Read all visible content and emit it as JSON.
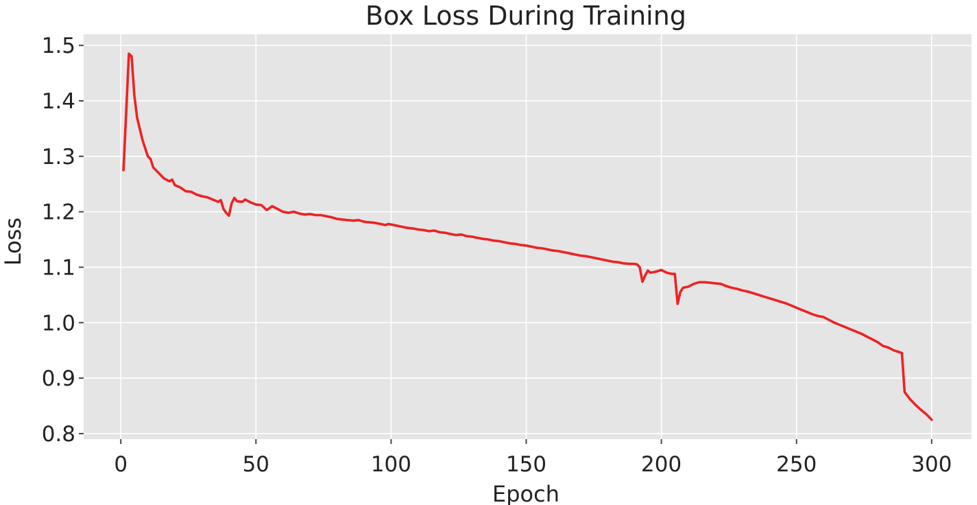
{
  "chart_data": {
    "type": "line",
    "title": "Box Loss During Training",
    "xlabel": "Epoch",
    "ylabel": "Loss",
    "xlim": [
      -13.75,
      314.75
    ],
    "ylim": [
      0.79,
      1.52
    ],
    "xticks": [
      0,
      50,
      100,
      150,
      200,
      250,
      300
    ],
    "xtick_labels": [
      "0",
      "50",
      "100",
      "150",
      "200",
      "250",
      "300"
    ],
    "yticks": [
      0.8,
      0.9,
      1.0,
      1.1,
      1.2,
      1.3,
      1.4,
      1.5
    ],
    "ytick_labels": [
      "0.8",
      "0.9",
      "1.0",
      "1.1",
      "1.2",
      "1.3",
      "1.4",
      "1.5"
    ],
    "grid": true,
    "background": "#e5e5e5",
    "series": [
      {
        "color": "#ee2222",
        "points": [
          [
            1,
            1.275
          ],
          [
            3,
            1.485
          ],
          [
            4,
            1.48
          ],
          [
            5,
            1.41
          ],
          [
            6,
            1.37
          ],
          [
            8,
            1.33
          ],
          [
            10,
            1.3
          ],
          [
            11,
            1.295
          ],
          [
            12,
            1.28
          ],
          [
            14,
            1.27
          ],
          [
            16,
            1.26
          ],
          [
            18,
            1.255
          ],
          [
            19,
            1.258
          ],
          [
            20,
            1.248
          ],
          [
            22,
            1.244
          ],
          [
            24,
            1.237
          ],
          [
            26,
            1.236
          ],
          [
            28,
            1.231
          ],
          [
            30,
            1.228
          ],
          [
            32,
            1.226
          ],
          [
            34,
            1.222
          ],
          [
            36,
            1.218
          ],
          [
            37,
            1.221
          ],
          [
            38,
            1.205
          ],
          [
            39,
            1.198
          ],
          [
            40,
            1.193
          ],
          [
            41,
            1.215
          ],
          [
            42,
            1.225
          ],
          [
            43,
            1.219
          ],
          [
            45,
            1.218
          ],
          [
            46,
            1.222
          ],
          [
            48,
            1.217
          ],
          [
            50,
            1.213
          ],
          [
            52,
            1.212
          ],
          [
            54,
            1.203
          ],
          [
            56,
            1.21
          ],
          [
            58,
            1.205
          ],
          [
            60,
            1.2
          ],
          [
            62,
            1.198
          ],
          [
            64,
            1.2
          ],
          [
            66,
            1.197
          ],
          [
            68,
            1.195
          ],
          [
            70,
            1.196
          ],
          [
            72,
            1.194
          ],
          [
            74,
            1.194
          ],
          [
            76,
            1.192
          ],
          [
            78,
            1.19
          ],
          [
            80,
            1.187
          ],
          [
            82,
            1.186
          ],
          [
            84,
            1.185
          ],
          [
            86,
            1.184
          ],
          [
            88,
            1.185
          ],
          [
            90,
            1.182
          ],
          [
            92,
            1.181
          ],
          [
            94,
            1.18
          ],
          [
            96,
            1.178
          ],
          [
            98,
            1.176
          ],
          [
            99,
            1.178
          ],
          [
            100,
            1.177
          ],
          [
            102,
            1.175
          ],
          [
            104,
            1.173
          ],
          [
            106,
            1.171
          ],
          [
            108,
            1.17
          ],
          [
            110,
            1.168
          ],
          [
            112,
            1.167
          ],
          [
            114,
            1.165
          ],
          [
            116,
            1.166
          ],
          [
            118,
            1.163
          ],
          [
            120,
            1.162
          ],
          [
            122,
            1.16
          ],
          [
            124,
            1.158
          ],
          [
            126,
            1.159
          ],
          [
            128,
            1.156
          ],
          [
            130,
            1.155
          ],
          [
            132,
            1.153
          ],
          [
            134,
            1.151
          ],
          [
            136,
            1.15
          ],
          [
            138,
            1.148
          ],
          [
            140,
            1.147
          ],
          [
            142,
            1.145
          ],
          [
            144,
            1.143
          ],
          [
            146,
            1.142
          ],
          [
            148,
            1.14
          ],
          [
            150,
            1.139
          ],
          [
            152,
            1.137
          ],
          [
            154,
            1.135
          ],
          [
            156,
            1.134
          ],
          [
            158,
            1.132
          ],
          [
            160,
            1.13
          ],
          [
            162,
            1.129
          ],
          [
            164,
            1.127
          ],
          [
            166,
            1.125
          ],
          [
            168,
            1.123
          ],
          [
            170,
            1.121
          ],
          [
            172,
            1.12
          ],
          [
            174,
            1.118
          ],
          [
            176,
            1.116
          ],
          [
            178,
            1.114
          ],
          [
            180,
            1.112
          ],
          [
            182,
            1.11
          ],
          [
            184,
            1.109
          ],
          [
            186,
            1.107
          ],
          [
            188,
            1.106
          ],
          [
            190,
            1.106
          ],
          [
            191,
            1.105
          ],
          [
            192,
            1.1
          ],
          [
            193,
            1.074
          ],
          [
            194,
            1.085
          ],
          [
            195,
            1.094
          ],
          [
            196,
            1.09
          ],
          [
            198,
            1.092
          ],
          [
            200,
            1.095
          ],
          [
            202,
            1.09
          ],
          [
            204,
            1.088
          ],
          [
            205,
            1.088
          ],
          [
            206,
            1.034
          ],
          [
            207,
            1.055
          ],
          [
            208,
            1.063
          ],
          [
            210,
            1.065
          ],
          [
            212,
            1.07
          ],
          [
            214,
            1.073
          ],
          [
            216,
            1.073
          ],
          [
            218,
            1.072
          ],
          [
            220,
            1.071
          ],
          [
            222,
            1.07
          ],
          [
            224,
            1.066
          ],
          [
            226,
            1.063
          ],
          [
            228,
            1.061
          ],
          [
            230,
            1.058
          ],
          [
            232,
            1.056
          ],
          [
            234,
            1.053
          ],
          [
            236,
            1.05
          ],
          [
            238,
            1.047
          ],
          [
            240,
            1.044
          ],
          [
            242,
            1.041
          ],
          [
            244,
            1.038
          ],
          [
            246,
            1.035
          ],
          [
            248,
            1.031
          ],
          [
            250,
            1.027
          ],
          [
            252,
            1.023
          ],
          [
            254,
            1.019
          ],
          [
            256,
            1.015
          ],
          [
            258,
            1.012
          ],
          [
            260,
            1.01
          ],
          [
            262,
            1.005
          ],
          [
            264,
            1.0
          ],
          [
            266,
            0.996
          ],
          [
            268,
            0.992
          ],
          [
            270,
            0.988
          ],
          [
            272,
            0.984
          ],
          [
            274,
            0.98
          ],
          [
            276,
            0.975
          ],
          [
            278,
            0.97
          ],
          [
            280,
            0.965
          ],
          [
            282,
            0.958
          ],
          [
            284,
            0.955
          ],
          [
            286,
            0.95
          ],
          [
            288,
            0.947
          ],
          [
            289,
            0.945
          ],
          [
            290,
            0.875
          ],
          [
            292,
            0.862
          ],
          [
            294,
            0.852
          ],
          [
            296,
            0.843
          ],
          [
            298,
            0.835
          ],
          [
            300,
            0.825
          ]
        ]
      }
    ]
  }
}
